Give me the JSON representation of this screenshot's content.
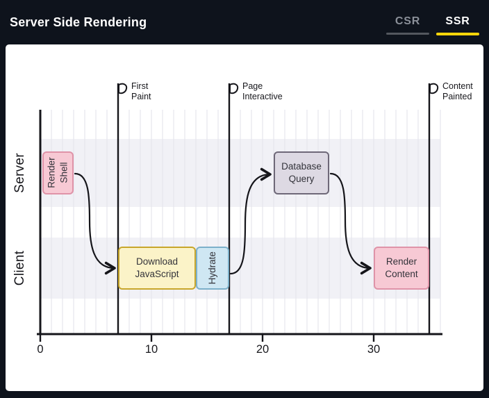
{
  "header": {
    "title": "Server Side Rendering",
    "tabs": [
      {
        "id": "csr",
        "label": "CSR",
        "active": false
      },
      {
        "id": "ssr",
        "label": "SSR",
        "active": true
      }
    ]
  },
  "colors": {
    "background": "#0e131c",
    "panel": "#ffffff",
    "active_tab_text": "#ffffff",
    "active_tab_underline": "#ffd60a",
    "inactive_tab_text": "#8b9099",
    "inactive_tab_underline": "#53575e",
    "lane_band": "#f1f1f6",
    "gridline": "#e2e2ea",
    "ink": "#15151a"
  },
  "chart_data": {
    "type": "timeline",
    "title": "Server Side Rendering",
    "selected_mode": "SSR",
    "x_ticks": [
      0,
      10,
      20,
      30
    ],
    "x_max": 36,
    "lanes": [
      "Server",
      "Client"
    ],
    "milestones": [
      {
        "label": "First Paint",
        "t": 7
      },
      {
        "label": "Page Interactive",
        "t": 17
      },
      {
        "label": "Content Painted",
        "t": 35
      }
    ],
    "tasks": [
      {
        "id": "render-shell",
        "label": "Render Shell",
        "lane": "Server",
        "start": 0.2,
        "end": 3,
        "color": "pink",
        "vertical": true
      },
      {
        "id": "download-javascript",
        "label": "Download JavaScript",
        "lane": "Client",
        "start": 7,
        "end": 14,
        "color": "yellow",
        "vertical": false
      },
      {
        "id": "hydrate",
        "label": "Hydrate",
        "lane": "Client",
        "start": 14,
        "end": 17,
        "color": "blue",
        "vertical": true
      },
      {
        "id": "database-query",
        "label": "Database Query",
        "lane": "Server",
        "start": 21,
        "end": 26,
        "color": "purple",
        "vertical": false
      },
      {
        "id": "render-content",
        "label": "Render Content",
        "lane": "Client",
        "start": 30,
        "end": 35,
        "color": "pink",
        "vertical": false
      }
    ],
    "arrows": [
      {
        "from": "render-shell",
        "to": "download-javascript"
      },
      {
        "from": "hydrate",
        "to": "database-query"
      },
      {
        "from": "database-query",
        "to": "render-content"
      }
    ],
    "palette": {
      "pink": {
        "fill": "#f7c9d4",
        "border": "#df93a8"
      },
      "yellow": {
        "fill": "#fbf3c8",
        "border": "#c8a62b"
      },
      "blue": {
        "fill": "#cfe7f3",
        "border": "#7cb0ca"
      },
      "purple": {
        "fill": "#ddd9e3",
        "border": "#6e6878"
      }
    }
  }
}
